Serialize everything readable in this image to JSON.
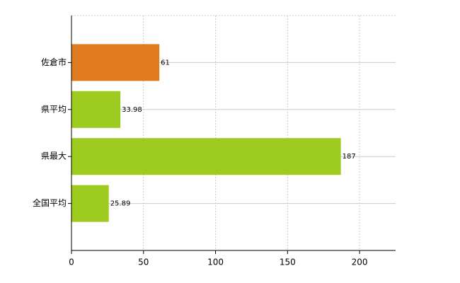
{
  "chart_data": {
    "type": "barh",
    "categories": [
      "佐倉市",
      "県平均",
      "県最大",
      "全国平均"
    ],
    "values": [
      61,
      33.98,
      187,
      25.89
    ],
    "colors": [
      "#e07b1f",
      "#9ecb1f",
      "#9ecb1f",
      "#9ecb1f"
    ],
    "xlim": [
      0,
      225
    ],
    "xticks": [
      0,
      50,
      100,
      150,
      200
    ],
    "grid": true
  }
}
